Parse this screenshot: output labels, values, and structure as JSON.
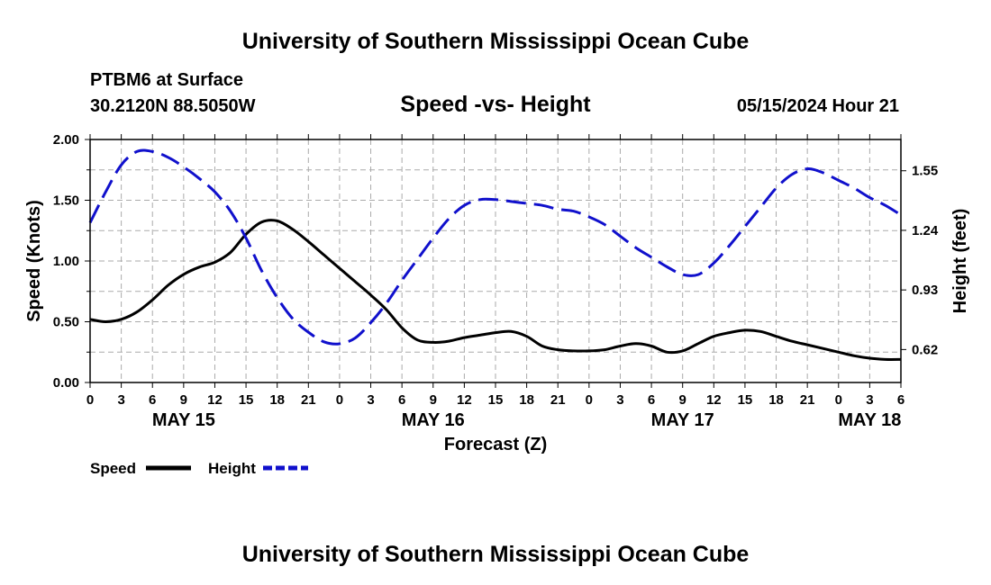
{
  "header": {
    "title": "University of Southern Mississippi Ocean Cube",
    "station": "PTBM6 at Surface",
    "coords": "30.2120N  88.5050W",
    "datetime": "05/15/2024 Hour 21",
    "footer_title": "University of Southern Mississippi Ocean Cube"
  },
  "colors": {
    "speed": "#000000",
    "height": "#1010cc",
    "grid": "#aaaaaa"
  },
  "chart_data": {
    "type": "line",
    "title": "Speed -vs- Height",
    "xlabel": "Forecast (Z)",
    "ylabel": "Speed (Knots)",
    "y2label": "Height (feet)",
    "ylim": [
      0,
      2.0
    ],
    "y2lim": [
      0.4485,
      1.7126
    ],
    "yticks": [
      "0.00",
      "0.50",
      "1.00",
      "1.50",
      "2.00"
    ],
    "y2ticks": [
      "0.62",
      "0.93",
      "1.24",
      "1.55"
    ],
    "xlim": [
      0,
      78
    ],
    "xtick_labels": [
      "0",
      "3",
      "6",
      "9",
      "12",
      "15",
      "18",
      "21",
      "0",
      "3",
      "6",
      "9",
      "12",
      "15",
      "18",
      "21",
      "0",
      "3",
      "6",
      "9",
      "12",
      "15",
      "18",
      "21",
      "0",
      "3",
      "6"
    ],
    "date_labels": [
      {
        "hour": 9,
        "label": "MAY 15"
      },
      {
        "hour": 33,
        "label": "MAY 16"
      },
      {
        "hour": 57,
        "label": "MAY 17"
      },
      {
        "hour": 75,
        "label": "MAY 18"
      }
    ],
    "legend": [
      "Speed",
      "Height"
    ],
    "grid": true,
    "series": [
      {
        "name": "Speed",
        "axis": "left",
        "x": [
          0,
          1.5,
          3,
          4.5,
          6,
          7.5,
          9,
          10.5,
          12,
          13.5,
          15,
          16.5,
          18,
          19.5,
          21,
          22.5,
          24,
          25.5,
          27,
          28.5,
          30,
          31.5,
          33,
          34.5,
          36,
          37.5,
          39,
          40.5,
          42,
          43.5,
          45,
          46.5,
          48,
          49.5,
          51,
          52.5,
          54,
          55.5,
          57,
          58.5,
          60,
          61.5,
          63,
          64.5,
          66,
          67.5,
          69,
          70.5,
          72,
          73.5,
          75,
          76.5,
          78
        ],
        "values": [
          0.52,
          0.5,
          0.52,
          0.58,
          0.68,
          0.8,
          0.89,
          0.95,
          0.99,
          1.07,
          1.22,
          1.32,
          1.33,
          1.26,
          1.16,
          1.05,
          0.94,
          0.83,
          0.72,
          0.6,
          0.45,
          0.35,
          0.33,
          0.34,
          0.37,
          0.39,
          0.41,
          0.42,
          0.38,
          0.3,
          0.27,
          0.26,
          0.26,
          0.27,
          0.3,
          0.32,
          0.3,
          0.25,
          0.26,
          0.32,
          0.38,
          0.41,
          0.43,
          0.42,
          0.38,
          0.34,
          0.31,
          0.28,
          0.25,
          0.22,
          0.2,
          0.19,
          0.19
        ]
      },
      {
        "name": "Height",
        "axis": "right",
        "x": [
          0,
          1.5,
          3,
          4.5,
          6,
          7.5,
          9,
          10.5,
          12,
          13.5,
          15,
          16.5,
          18,
          19.5,
          21,
          22.5,
          24,
          25.5,
          27,
          28.5,
          30,
          31.5,
          33,
          34.5,
          36,
          37.5,
          39,
          40.5,
          42,
          43.5,
          45,
          46.5,
          48,
          49.5,
          51,
          52.5,
          54,
          55.5,
          57,
          58.5,
          60,
          61.5,
          63,
          64.5,
          66,
          67.5,
          69,
          70.5,
          72,
          73.5,
          75,
          76.5,
          78
        ],
        "values": [
          1.28,
          1.44,
          1.58,
          1.65,
          1.65,
          1.62,
          1.57,
          1.51,
          1.44,
          1.34,
          1.2,
          1.03,
          0.89,
          0.78,
          0.71,
          0.66,
          0.65,
          0.68,
          0.76,
          0.86,
          0.98,
          1.09,
          1.2,
          1.3,
          1.37,
          1.4,
          1.4,
          1.39,
          1.38,
          1.37,
          1.35,
          1.34,
          1.31,
          1.27,
          1.21,
          1.15,
          1.1,
          1.05,
          1.01,
          1.01,
          1.07,
          1.16,
          1.26,
          1.36,
          1.46,
          1.53,
          1.56,
          1.54,
          1.5,
          1.46,
          1.41,
          1.37,
          1.32
        ]
      }
    ]
  }
}
